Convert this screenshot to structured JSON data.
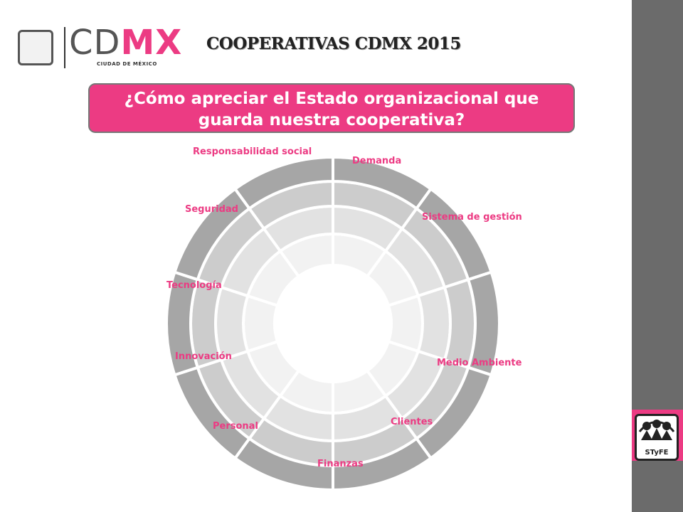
{
  "header": {
    "logo_cd": "CD",
    "logo_mx": "MX",
    "logo_subtitle": "CIUDAD DE MÉXICO",
    "title": "COOPERATIVAS CDMX 2015"
  },
  "banner": {
    "line1": "¿Cómo apreciar el Estado organizacional que",
    "line2": "guarda nuestra cooperativa?"
  },
  "wheel": {
    "segments": [
      "Demanda",
      "Sistema de gestión",
      "Medio Ambiente",
      "Clientes",
      "Finanzas",
      "Personal",
      "Innovación",
      "Tecnología",
      "Seguridad",
      "Responsabilidad social"
    ],
    "ring_colors": [
      "#f2f2f2",
      "#e2e2e2",
      "#cccccc",
      "#a6a6a6"
    ],
    "label_color": "#ec3b83"
  },
  "sidebar": {
    "logo_text": "STyFE",
    "accent": "#ec3b83",
    "background": "#6b6b6b"
  }
}
